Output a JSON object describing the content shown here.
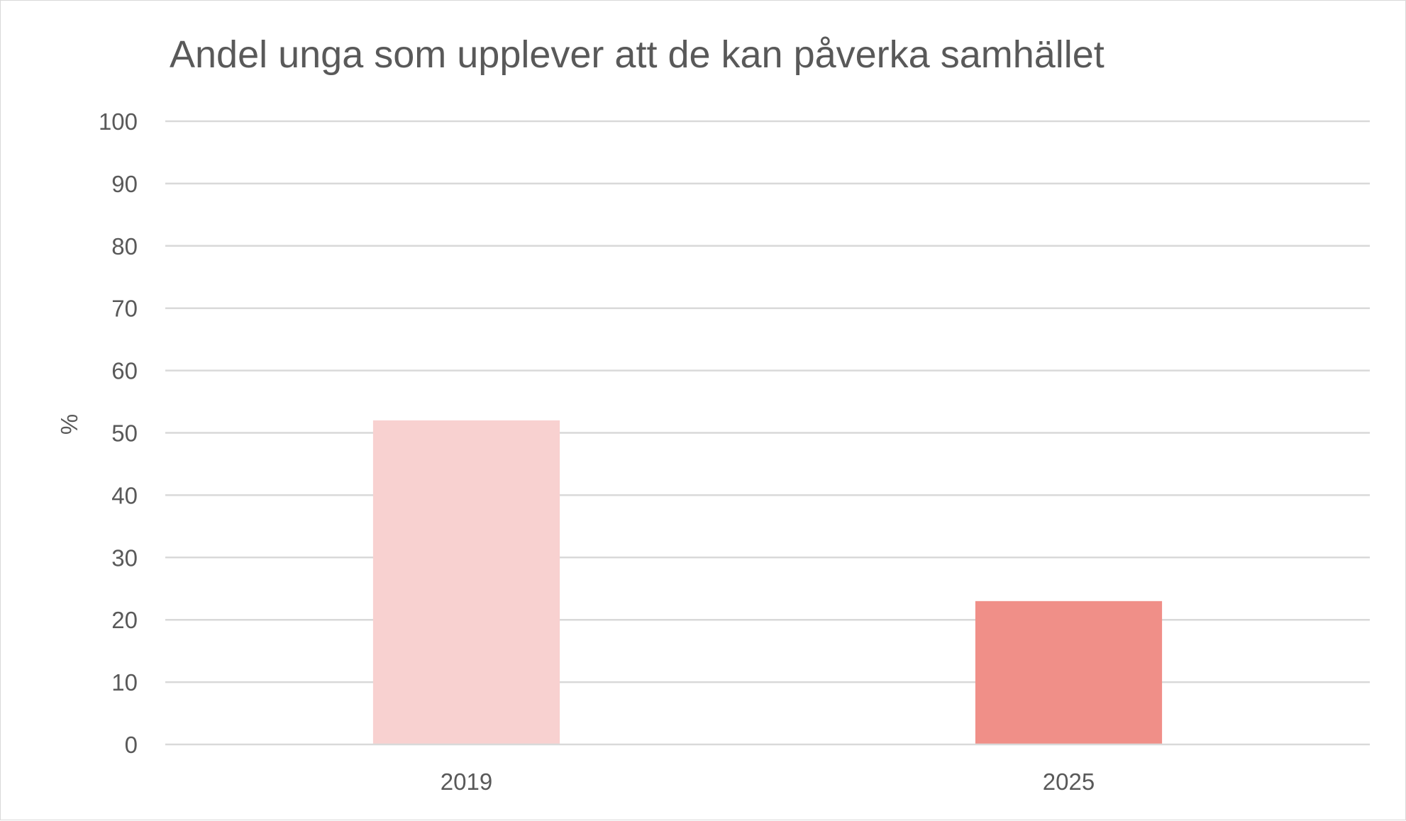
{
  "chart_data": {
    "type": "bar",
    "title": "Andel unga som upplever att de kan påverka samhället",
    "xlabel": "",
    "ylabel": "%",
    "categories": [
      "2019",
      "2025"
    ],
    "values": [
      52,
      23
    ],
    "bar_colors": [
      "#f8d1d0",
      "#f08f88"
    ],
    "ylim": [
      0,
      100
    ],
    "yticks": [
      "0",
      "10",
      "20",
      "30",
      "40",
      "50",
      "60",
      "70",
      "80",
      "90",
      "100"
    ],
    "grid": true,
    "legend": "none"
  }
}
